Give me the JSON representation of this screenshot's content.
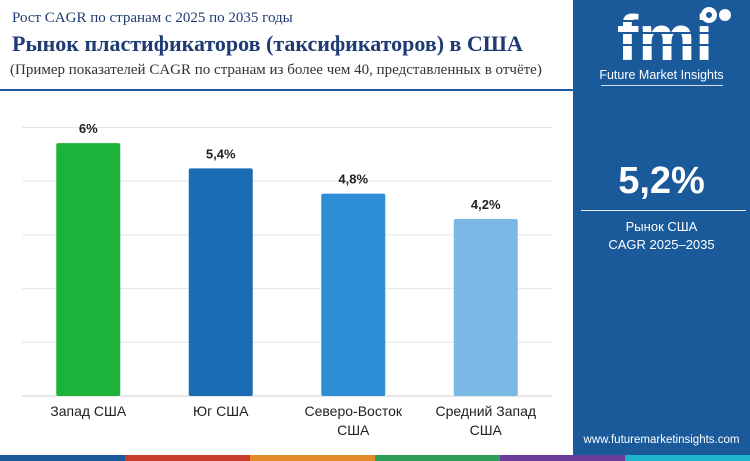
{
  "header": {
    "subtitle": "Рост CAGR по странам с 2025 по 2035 годы",
    "title": "Рынок пластификаторов (таксификаторов) в США",
    "note": "(Пример показателей CAGR по странам из более чем 40, представленных в отчёте)"
  },
  "chart_data": {
    "type": "bar",
    "categories": [
      [
        "Запад США"
      ],
      [
        "Юг США"
      ],
      [
        "Северо-Восток",
        "США"
      ],
      [
        "Средний Запад",
        "США"
      ]
    ],
    "values": [
      6.0,
      5.4,
      4.8,
      4.2
    ],
    "value_labels": [
      "6%",
      "5,4%",
      "4,8%",
      "4,2%"
    ],
    "bar_colors": [
      "#1db33a",
      "#1a6db2",
      "#2f8fd6",
      "#7ab8e6"
    ],
    "ylim": [
      0,
      6.5
    ],
    "grid": true,
    "title": "",
    "xlabel": "",
    "ylabel": ""
  },
  "sidebar": {
    "logo_text": "fmi",
    "logo_caption": "Future Market Insights",
    "kpi_value": "5,2%",
    "kpi_label_line1": "Рынок США",
    "kpi_label_line2": "CAGR 2025–2035",
    "website": "www.futuremarketinsights.com"
  },
  "colors": {
    "title": "#1f3b73",
    "sidebar_bg": "#1b5a9a",
    "bottom_strip": [
      "#1b5a9a",
      "#c83a2a",
      "#e38b2a",
      "#2e9e5a",
      "#6a3d9a",
      "#1db3c8"
    ]
  }
}
